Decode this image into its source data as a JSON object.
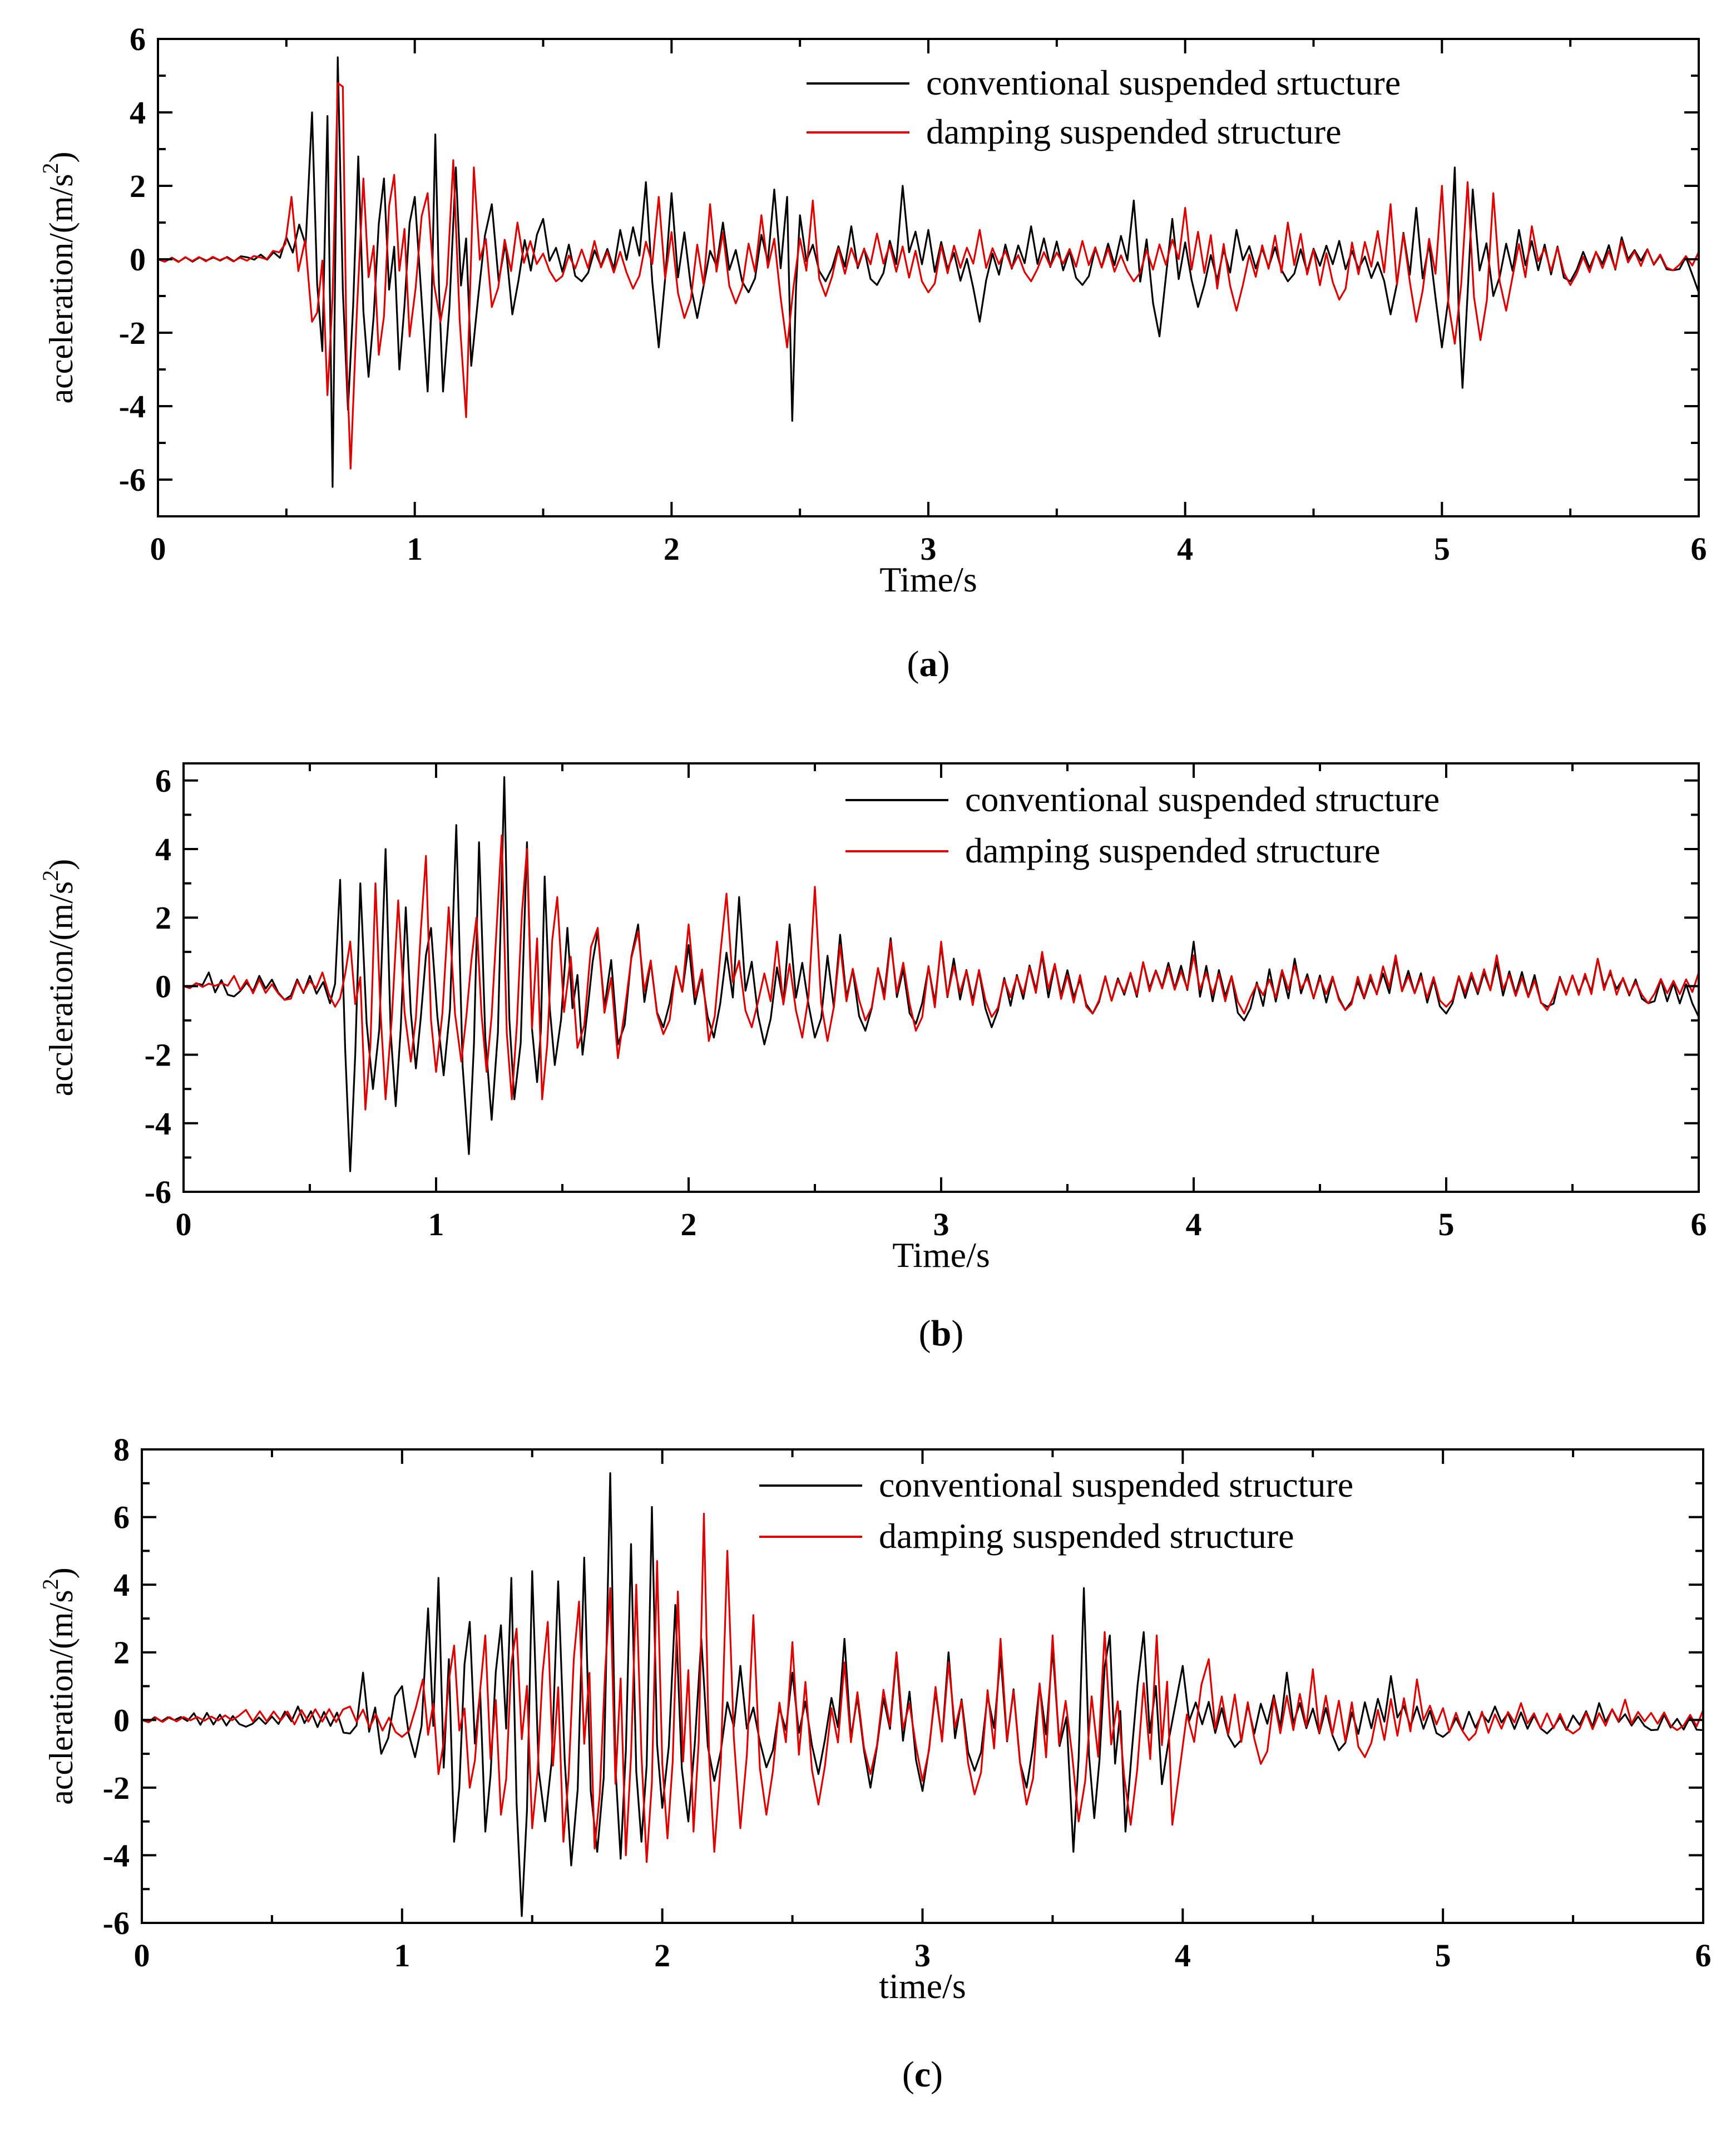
{
  "colors": {
    "conventional": "#000000",
    "damping": "#e00000",
    "axis": "#000000",
    "background": "#ffffff"
  },
  "chart_data": [
    {
      "type": "line",
      "panel_label": {
        "open": "(",
        "letter": "a",
        "close": ")"
      },
      "xlabel": "Time/s",
      "ylabel_prefix": "acceleration/(m/s",
      "ylabel_exp": "2",
      "ylabel_suffix": ")",
      "xlim": [
        0,
        6
      ],
      "ylim": [
        -7,
        6
      ],
      "xticks": [
        0,
        1,
        2,
        3,
        4,
        5,
        6
      ],
      "yticks": [
        -6,
        -4,
        -2,
        0,
        2,
        4,
        6
      ],
      "series": [
        {
          "name": "conventional suspended srtucture",
          "color": "#000000",
          "x": [
            0,
            0.35,
            0.5,
            0.6,
            0.64,
            0.66,
            0.68,
            0.7,
            0.74,
            0.78,
            0.82,
            0.88,
            0.94,
            1.0,
            1.05,
            1.08,
            1.11,
            1.16,
            1.22,
            1.3,
            1.38,
            1.5,
            1.65,
            1.8,
            1.9,
            1.95,
            2.0,
            2.1,
            2.2,
            2.3,
            2.4,
            2.45,
            2.47,
            2.5,
            2.6,
            2.7,
            2.8,
            2.9,
            3.0,
            3.2,
            3.4,
            3.6,
            3.8,
            3.9,
            3.95,
            4.05,
            4.2,
            4.4,
            4.6,
            4.8,
            4.9,
            5.0,
            5.05,
            5.08,
            5.12,
            5.2,
            5.3,
            5.5,
            5.7,
            5.9,
            6.0
          ],
          "y": [
            0,
            0.05,
            0.6,
            4.0,
            -2.5,
            3.9,
            -6.2,
            5.5,
            -4.1,
            2.8,
            -3.2,
            2.2,
            -3.0,
            1.7,
            -3.6,
            3.4,
            -3.6,
            2.5,
            -2.9,
            1.5,
            -1.5,
            1.1,
            -0.6,
            0.8,
            2.1,
            -2.4,
            1.8,
            -1.6,
            1.0,
            -0.9,
            1.9,
            1.7,
            -4.4,
            1.2,
            -0.6,
            0.9,
            -0.7,
            2.0,
            0.8,
            -1.7,
            0.9,
            -0.7,
            1.6,
            -2.1,
            1.1,
            -1.3,
            0.8,
            -0.6,
            0.5,
            -1.5,
            1.4,
            -2.4,
            2.5,
            -3.5,
            1.9,
            -1.0,
            0.8,
            -0.6,
            0.6,
            -0.3,
            -0.9
          ]
        },
        {
          "name": "damping suspended structure",
          "color": "#e00000",
          "x": [
            0,
            0.4,
            0.52,
            0.6,
            0.66,
            0.7,
            0.72,
            0.75,
            0.8,
            0.86,
            0.92,
            0.98,
            1.05,
            1.1,
            1.15,
            1.2,
            1.23,
            1.3,
            1.4,
            1.55,
            1.7,
            1.85,
            1.95,
            2.05,
            2.15,
            2.25,
            2.35,
            2.45,
            2.55,
            2.6,
            2.8,
            3.0,
            3.2,
            3.4,
            3.6,
            3.8,
            4.0,
            4.2,
            4.4,
            4.6,
            4.8,
            4.9,
            5.0,
            5.05,
            5.1,
            5.15,
            5.2,
            5.25,
            5.35,
            5.5,
            5.7,
            5.9,
            6.0
          ],
          "y": [
            0,
            0.05,
            1.7,
            -1.7,
            -3.7,
            4.8,
            4.7,
            -5.7,
            2.2,
            -2.6,
            2.3,
            -2.1,
            1.8,
            -1.7,
            2.7,
            -4.3,
            2.5,
            -1.3,
            1.0,
            -0.6,
            0.5,
            -0.8,
            1.7,
            -1.6,
            1.5,
            -1.2,
            1.2,
            -2.4,
            1.6,
            -1.0,
            0.7,
            -0.9,
            0.8,
            -0.6,
            0.5,
            -0.6,
            1.4,
            -1.4,
            1.0,
            -1.1,
            1.5,
            -1.7,
            2.0,
            -2.3,
            2.1,
            -2.2,
            1.8,
            -1.4,
            0.9,
            -0.7,
            0.5,
            -0.3,
            0.2
          ]
        }
      ]
    },
    {
      "type": "line",
      "panel_label": {
        "open": "(",
        "letter": "b",
        "close": ")"
      },
      "xlabel": "Time/s",
      "ylabel_prefix": "accleration/(m/s",
      "ylabel_exp": "2",
      "ylabel_suffix": ")",
      "xlim": [
        0,
        6
      ],
      "ylim": [
        -6,
        6.5
      ],
      "xticks": [
        0,
        1,
        2,
        3,
        4,
        5,
        6
      ],
      "yticks": [
        -6,
        -4,
        -2,
        0,
        2,
        4,
        6
      ],
      "series": [
        {
          "name": "conventional suspended structure",
          "color": "#000000",
          "x": [
            0,
            0.1,
            0.2,
            0.3,
            0.4,
            0.5,
            0.58,
            0.62,
            0.66,
            0.7,
            0.75,
            0.8,
            0.84,
            0.88,
            0.92,
            0.98,
            1.03,
            1.08,
            1.13,
            1.17,
            1.22,
            1.27,
            1.31,
            1.36,
            1.4,
            1.43,
            1.47,
            1.52,
            1.58,
            1.64,
            1.72,
            1.8,
            1.9,
            2.0,
            2.1,
            2.2,
            2.3,
            2.4,
            2.5,
            2.6,
            2.7,
            2.8,
            2.9,
            3.0,
            3.2,
            3.4,
            3.6,
            3.8,
            4.0,
            4.2,
            4.4,
            4.6,
            4.8,
            5.0,
            5.2,
            5.4,
            5.6,
            5.8,
            6.0
          ],
          "y": [
            0,
            0.4,
            -0.3,
            0.3,
            -0.4,
            0.3,
            -0.5,
            3.1,
            -5.4,
            3.0,
            -3.0,
            4.0,
            -3.5,
            2.3,
            -2.4,
            1.7,
            -2.6,
            4.7,
            -4.9,
            4.2,
            -3.9,
            6.1,
            -3.3,
            4.2,
            -2.8,
            3.2,
            -2.3,
            1.7,
            -2.0,
            1.6,
            -1.7,
            1.8,
            -1.2,
            1.2,
            -1.5,
            2.6,
            -1.7,
            1.8,
            -1.5,
            1.5,
            -1.3,
            1.4,
            -1.1,
            1.2,
            -1.2,
            0.9,
            -0.8,
            0.7,
            1.3,
            -1.0,
            0.8,
            -0.7,
            0.8,
            -0.8,
            0.7,
            -0.6,
            0.8,
            -0.5,
            -0.9
          ]
        },
        {
          "name": "damping suspended structure",
          "color": "#e00000",
          "x": [
            0,
            0.2,
            0.4,
            0.55,
            0.6,
            0.66,
            0.72,
            0.76,
            0.8,
            0.85,
            0.9,
            0.96,
            1.0,
            1.05,
            1.1,
            1.16,
            1.2,
            1.26,
            1.3,
            1.36,
            1.42,
            1.48,
            1.56,
            1.64,
            1.72,
            1.8,
            1.9,
            2.0,
            2.08,
            2.15,
            2.25,
            2.35,
            2.45,
            2.5,
            2.55,
            2.6,
            2.7,
            2.8,
            2.9,
            3.0,
            3.2,
            3.4,
            3.6,
            3.8,
            4.0,
            4.2,
            4.4,
            4.6,
            4.8,
            5.0,
            5.2,
            5.4,
            5.6,
            5.8,
            6.0
          ],
          "y": [
            0,
            0.3,
            -0.4,
            0.4,
            -0.6,
            1.3,
            -3.6,
            3.0,
            -3.3,
            2.5,
            -2.2,
            3.8,
            -2.5,
            2.3,
            -2.2,
            2.0,
            -2.5,
            4.4,
            -3.3,
            4.0,
            -3.3,
            2.6,
            -1.8,
            1.7,
            -2.1,
            1.6,
            -1.4,
            1.8,
            -1.6,
            2.7,
            -1.2,
            1.3,
            -1.5,
            2.9,
            -1.6,
            1.2,
            -1.0,
            1.3,
            -1.3,
            1.3,
            -0.9,
            1.0,
            -0.8,
            0.7,
            0.9,
            -0.8,
            0.6,
            -0.7,
            0.9,
            -0.6,
            0.9,
            -0.7,
            0.8,
            -0.5,
            0.4
          ]
        }
      ]
    },
    {
      "type": "line",
      "panel_label": {
        "open": "(",
        "letter": "c",
        "close": ")"
      },
      "xlabel": "time/s",
      "ylabel_prefix": "accleration/(m/s",
      "ylabel_exp": "2",
      "ylabel_suffix": ")",
      "xlim": [
        0,
        6
      ],
      "ylim": [
        -6,
        8
      ],
      "xticks": [
        0,
        1,
        2,
        3,
        4,
        5,
        6
      ],
      "yticks": [
        -6,
        -4,
        -2,
        0,
        2,
        4,
        6,
        8
      ],
      "series": [
        {
          "name": "conventional suspended structure",
          "color": "#000000",
          "x": [
            0,
            0.2,
            0.4,
            0.6,
            0.8,
            0.85,
            0.92,
            1.0,
            1.05,
            1.1,
            1.14,
            1.2,
            1.26,
            1.32,
            1.38,
            1.42,
            1.46,
            1.5,
            1.55,
            1.6,
            1.65,
            1.7,
            1.75,
            1.8,
            1.84,
            1.88,
            1.92,
            1.96,
            2.0,
            2.05,
            2.1,
            2.15,
            2.2,
            2.3,
            2.4,
            2.5,
            2.6,
            2.7,
            2.8,
            2.9,
            3.0,
            3.1,
            3.2,
            3.3,
            3.4,
            3.5,
            3.58,
            3.62,
            3.66,
            3.72,
            3.78,
            3.85,
            3.92,
            4.0,
            4.2,
            4.4,
            4.6,
            4.8,
            5.0,
            5.2,
            5.4,
            5.6,
            5.8,
            6.0
          ],
          "y": [
            0,
            0.2,
            -0.2,
            0.4,
            -0.4,
            1.4,
            -1.0,
            1.0,
            -1.1,
            3.3,
            4.2,
            -3.6,
            2.9,
            -3.3,
            2.8,
            4.2,
            -5.8,
            4.4,
            -3.0,
            4.1,
            -4.3,
            4.8,
            -3.9,
            7.3,
            -4.1,
            5.2,
            -3.6,
            6.3,
            -2.6,
            3.4,
            -3.0,
            2.4,
            -1.8,
            1.6,
            -1.4,
            1.4,
            -1.6,
            2.4,
            -2.0,
            1.9,
            -2.1,
            2.0,
            -1.5,
            1.9,
            -2.0,
            2.1,
            -3.9,
            3.9,
            -2.9,
            2.5,
            -3.3,
            2.6,
            -1.9,
            1.6,
            -0.8,
            1.4,
            -0.9,
            1.3,
            -0.5,
            0.4,
            -0.4,
            0.5,
            -0.3,
            -0.3
          ]
        },
        {
          "name": "damping suspended structure",
          "color": "#e00000",
          "x": [
            0,
            0.4,
            0.8,
            1.0,
            1.08,
            1.14,
            1.2,
            1.26,
            1.32,
            1.38,
            1.44,
            1.5,
            1.56,
            1.62,
            1.68,
            1.74,
            1.8,
            1.86,
            1.9,
            1.94,
            1.98,
            2.02,
            2.06,
            2.12,
            2.16,
            2.2,
            2.25,
            2.3,
            2.35,
            2.4,
            2.5,
            2.6,
            2.7,
            2.8,
            2.9,
            3.0,
            3.1,
            3.2,
            3.3,
            3.4,
            3.5,
            3.6,
            3.7,
            3.8,
            3.9,
            3.96,
            4.1,
            4.3,
            4.5,
            4.7,
            4.9,
            5.1,
            5.3,
            5.5,
            5.7,
            5.9,
            6.0
          ],
          "y": [
            0,
            0.3,
            0.4,
            -0.5,
            1.2,
            -1.6,
            2.2,
            -2.0,
            2.5,
            -2.8,
            2.7,
            -3.2,
            2.9,
            -3.6,
            3.5,
            -3.8,
            3.9,
            -4.0,
            4.0,
            -4.2,
            4.7,
            -3.5,
            3.8,
            -3.3,
            6.1,
            -3.9,
            5.0,
            -3.2,
            3.1,
            -2.8,
            2.3,
            -2.5,
            1.7,
            -1.6,
            2.0,
            -1.8,
            1.7,
            -2.2,
            2.4,
            -2.5,
            2.5,
            -3.0,
            2.6,
            -3.1,
            2.5,
            -3.1,
            1.8,
            -1.3,
            1.5,
            -1.1,
            1.2,
            -0.6,
            0.5,
            -0.4,
            0.6,
            -0.3,
            0.3
          ]
        }
      ]
    }
  ]
}
